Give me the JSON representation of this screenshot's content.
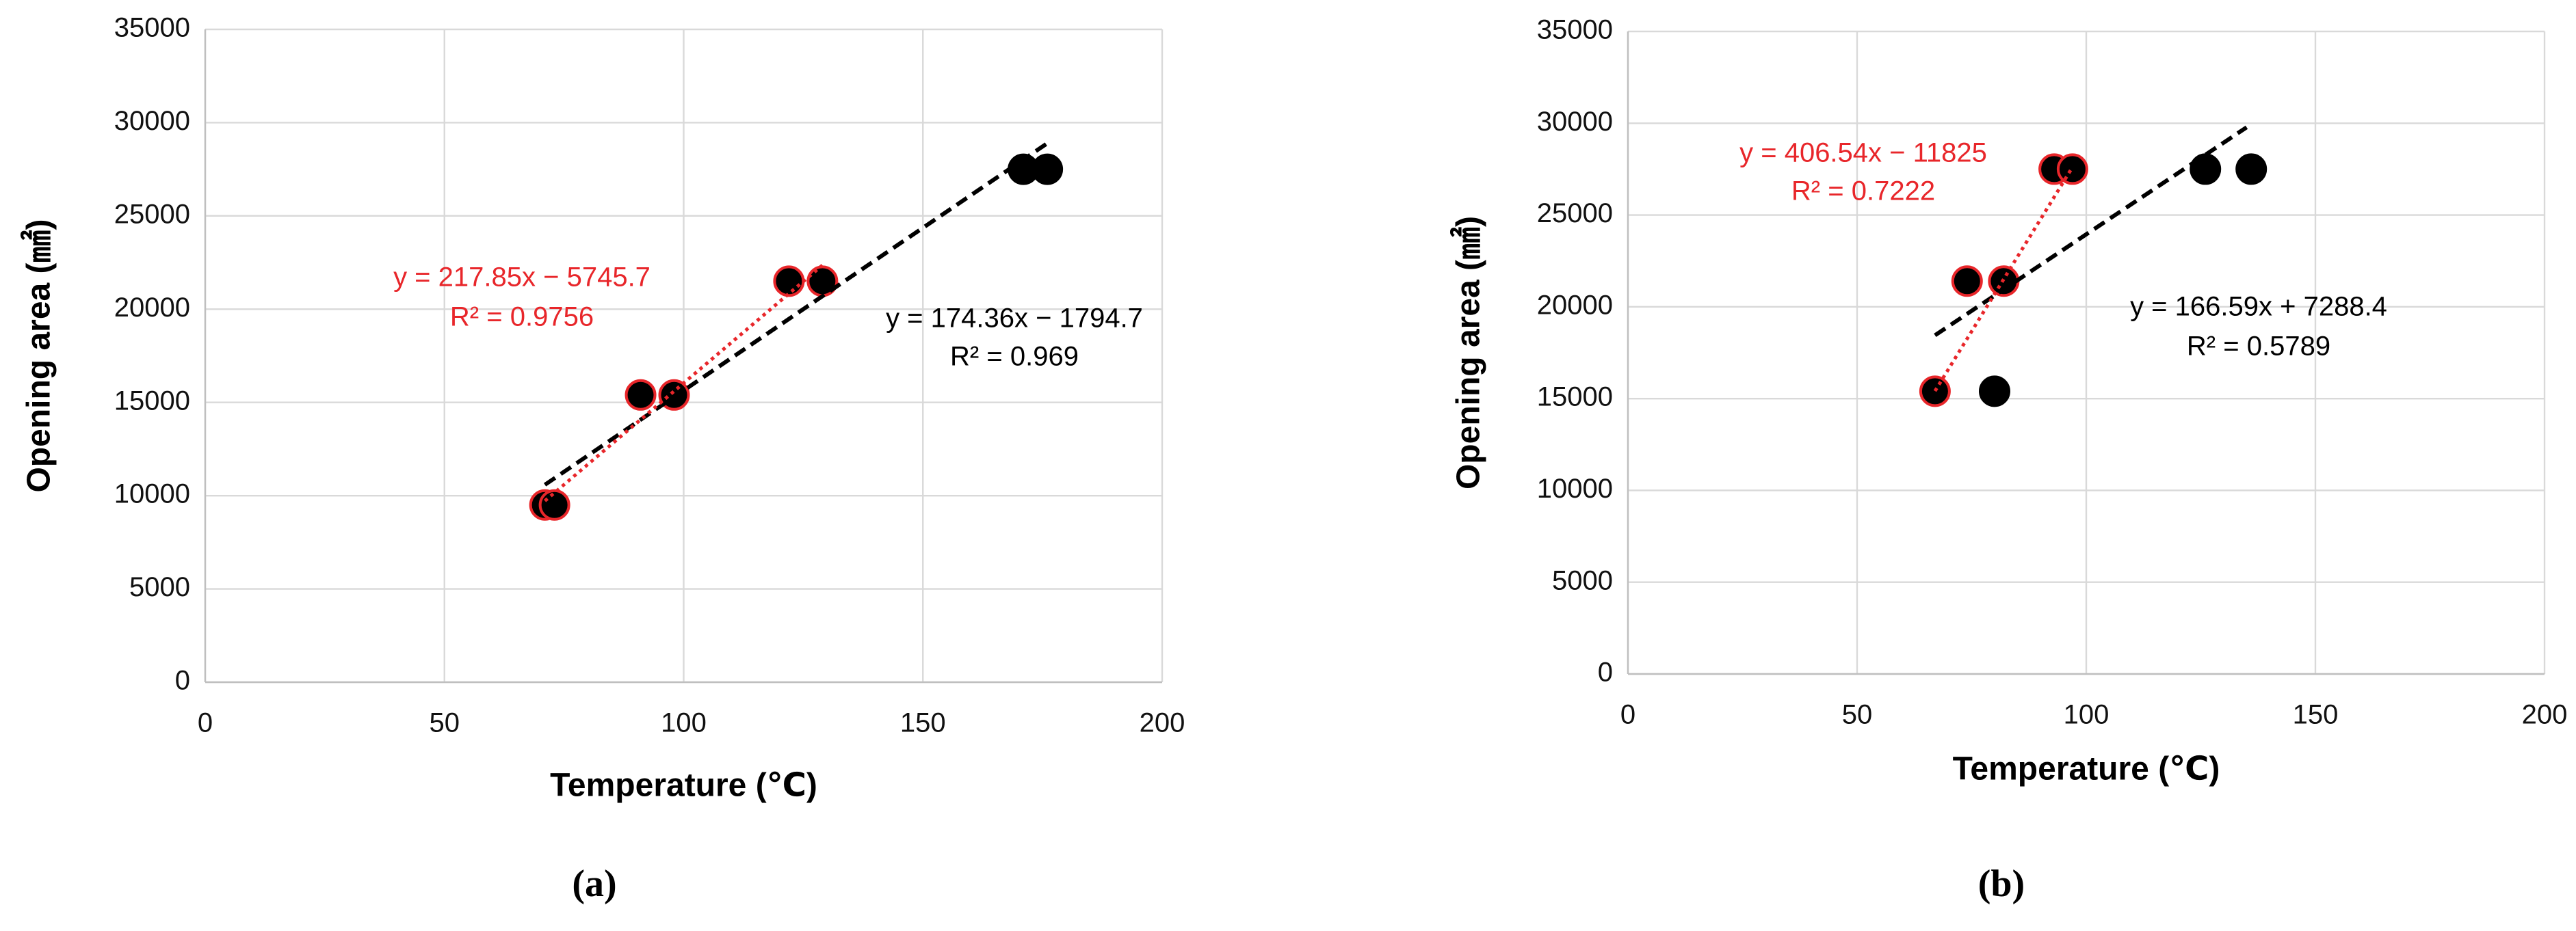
{
  "chart_data": [
    {
      "type": "scatter",
      "caption": "(a)",
      "x_label": "Temperature (℃)",
      "y_label": "Opening area (㎟)",
      "xlim": [
        0,
        200
      ],
      "xticks": [
        0,
        50,
        100,
        150,
        200
      ],
      "ylim": [
        0,
        35000
      ],
      "yticks": [
        0,
        5000,
        10000,
        15000,
        20000,
        25000,
        30000,
        35000
      ],
      "grid": true,
      "series": [
        {
          "color": "#000000",
          "edge": "#e8262a",
          "x": [
            71,
            73,
            91,
            98,
            122,
            129
          ],
          "values": [
            9500,
            9500,
            15400,
            15400,
            21500,
            21500
          ]
        },
        {
          "color": "#000000",
          "edge": "#000000",
          "x": [
            171,
            176
          ],
          "values": [
            27500,
            27500
          ]
        }
      ],
      "trendlines": [
        {
          "color": "#000000",
          "style": "dashed",
          "x": [
            71,
            176
          ],
          "values": [
            10585,
            28893
          ]
        },
        {
          "color": "#e8262a",
          "style": "dotted",
          "x": [
            71,
            129
          ],
          "values": [
            9721,
            22357
          ]
        }
      ],
      "annotations": [
        {
          "color": "#e8262a",
          "lines": [
            "y = 217.85x − 5745.7",
            "R² = 0.9756"
          ]
        },
        {
          "color": "#000000",
          "lines": [
            "y = 174.36x − 1794.7",
            "R² = 0.969"
          ]
        }
      ]
    },
    {
      "type": "scatter",
      "caption": "(b)",
      "x_label": "Temperature (℃)",
      "y_label": "Opening area (㎟)",
      "xlim": [
        0,
        200
      ],
      "xticks": [
        0,
        50,
        100,
        150,
        200
      ],
      "ylim": [
        0,
        35000
      ],
      "yticks": [
        0,
        5000,
        10000,
        15000,
        20000,
        25000,
        30000,
        35000
      ],
      "grid": true,
      "series": [
        {
          "color": "#000000",
          "edge": "#e8262a",
          "x": [
            67,
            74,
            82,
            93,
            97
          ],
          "values": [
            15400,
            21400,
            21400,
            27500,
            27500
          ]
        },
        {
          "color": "#000000",
          "edge": "#000000",
          "x": [
            80,
            126,
            136
          ],
          "values": [
            15400,
            27500,
            27500
          ]
        }
      ],
      "trendlines": [
        {
          "color": "#000000",
          "style": "dashed",
          "x": [
            67,
            135
          ],
          "values": [
            18450,
            29779
          ]
        },
        {
          "color": "#e8262a",
          "style": "dotted",
          "x": [
            67,
            97
          ],
          "values": [
            15413,
            27609
          ]
        }
      ],
      "annotations": [
        {
          "color": "#e8262a",
          "lines": [
            "y = 406.54x − 11825",
            "R² = 0.7222"
          ]
        },
        {
          "color": "#000000",
          "lines": [
            "y = 166.59x + 7288.4",
            "R² = 0.5789"
          ]
        }
      ]
    }
  ]
}
